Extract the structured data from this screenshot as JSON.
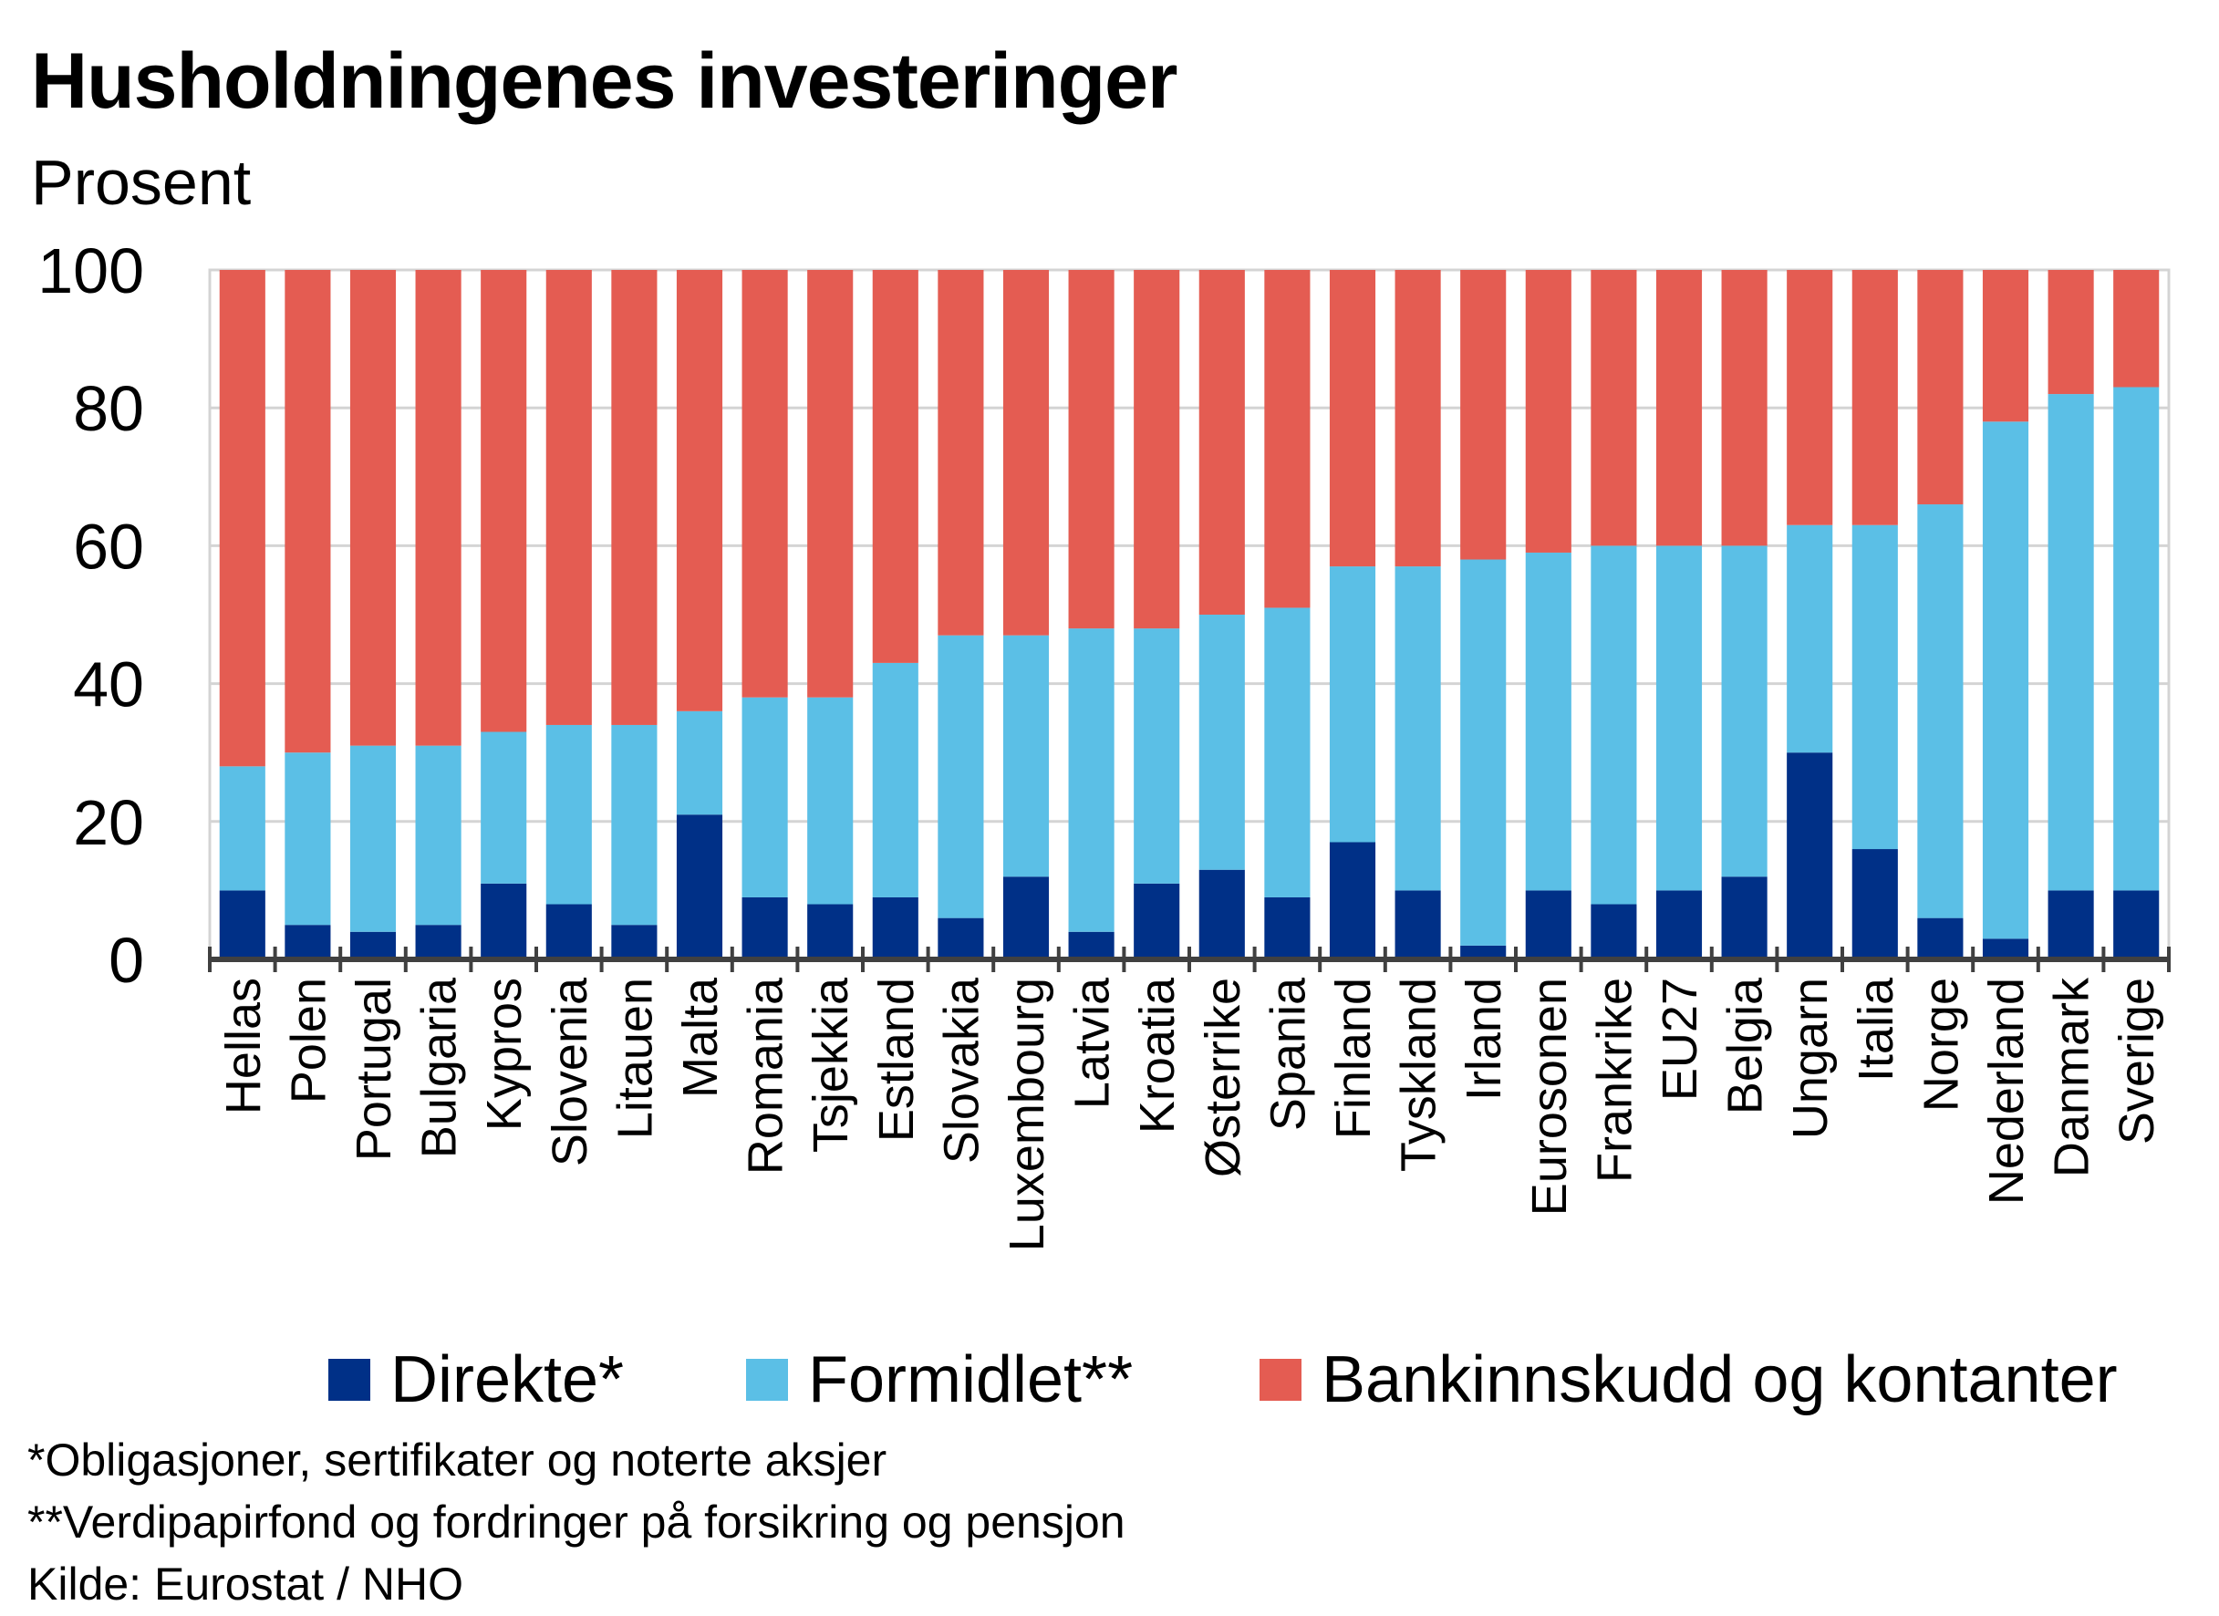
{
  "title": "Husholdningenes investeringer",
  "unit_label": "Prosent",
  "legend": [
    {
      "label": "Direkte*",
      "color": "#003087"
    },
    {
      "label": "Formidlet**",
      "color": "#5bbfe6"
    },
    {
      "label": "Bankinnskudd og kontanter",
      "color": "#e45c52"
    }
  ],
  "footnotes": [
    "*Obligasjoner, sertifikater og noterte aksjer",
    "**Verdipapirfond og fordringer på forsikring og pensjon",
    "Kilde: Eurostat / NHO"
  ],
  "chart_data": {
    "type": "bar",
    "stacked": true,
    "title": "Husholdningenes investeringer",
    "ylabel": "Prosent",
    "ylim": [
      0,
      100
    ],
    "yticks": [
      0,
      20,
      40,
      60,
      80,
      100
    ],
    "grid": true,
    "legend_position": "bottom",
    "categories": [
      "Hellas",
      "Polen",
      "Portugal",
      "Bulgaria",
      "Kypros",
      "Slovenia",
      "Litauen",
      "Malta",
      "Romania",
      "Tsjekkia",
      "Estland",
      "Slovakia",
      "Luxembourg",
      "Latvia",
      "Kroatia",
      "Østerrike",
      "Spania",
      "Finland",
      "Tyskland",
      "Irland",
      "Eurosonen",
      "Frankrike",
      "EU27",
      "Belgia",
      "Ungarn",
      "Italia",
      "Norge",
      "Nederland",
      "Danmark",
      "Sverige"
    ],
    "series": [
      {
        "name": "Direkte*",
        "color": "#003087",
        "values": [
          10,
          5,
          4,
          5,
          11,
          8,
          5,
          21,
          9,
          8,
          9,
          6,
          12,
          4,
          11,
          13,
          9,
          17,
          10,
          2,
          10,
          8,
          10,
          12,
          30,
          16,
          6,
          3,
          10,
          10
        ]
      },
      {
        "name": "Formidlet**",
        "color": "#5bbfe6",
        "values": [
          18,
          25,
          27,
          26,
          22,
          26,
          29,
          15,
          29,
          30,
          34,
          41,
          35,
          44,
          37,
          37,
          42,
          40,
          47,
          56,
          49,
          52,
          50,
          48,
          33,
          47,
          60,
          75,
          72,
          73
        ]
      },
      {
        "name": "Bankinnskudd og kontanter",
        "color": "#e45c52",
        "values": [
          72,
          70,
          69,
          69,
          67,
          66,
          66,
          64,
          62,
          62,
          57,
          53,
          53,
          52,
          52,
          50,
          49,
          43,
          43,
          42,
          41,
          40,
          40,
          40,
          37,
          37,
          34,
          22,
          18,
          17
        ]
      }
    ]
  }
}
